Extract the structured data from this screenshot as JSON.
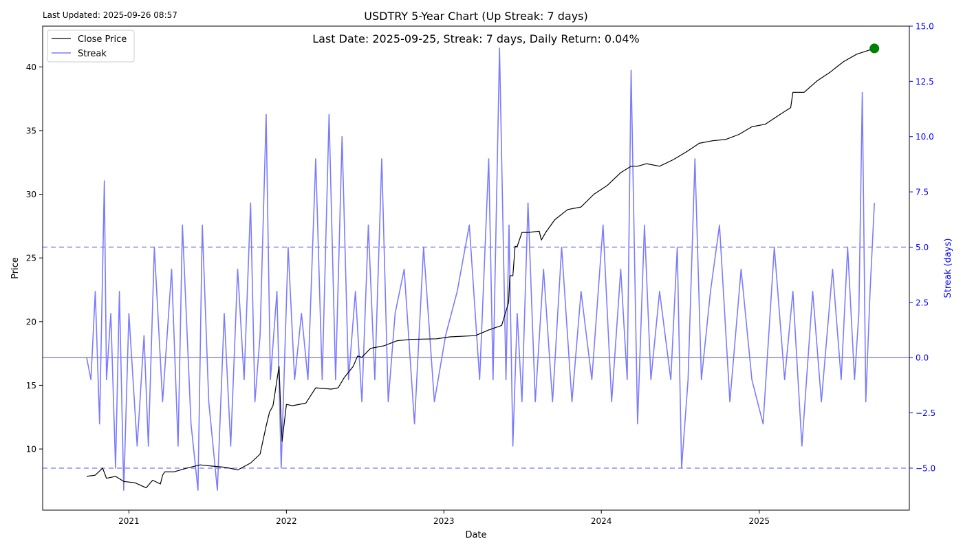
{
  "header": {
    "last_updated": "Last Updated: 2025-09-26 08:57"
  },
  "chart_data": {
    "type": "line",
    "title": "USDTRY 5-Year Chart (Up Streak: 7 days)",
    "annotation": "Last Date: 2025-09-25, Streak: 7 days, Daily Return: 0.04%",
    "xlabel": "Date",
    "ylabel": "Price",
    "ylabel_right": "Streak (days)",
    "xlim": [
      "2020-06-15",
      "2025-12-15"
    ],
    "ylim": [
      5.2,
      43.2
    ],
    "ylim_right": [
      -6.9,
      15.0
    ],
    "x_ticks": [
      "2021-01-01",
      "2022-01-01",
      "2023-01-01",
      "2024-01-01",
      "2025-01-01"
    ],
    "x_tick_labels": [
      "2021",
      "2022",
      "2023",
      "2024",
      "2025"
    ],
    "y_ticks": [
      10,
      15,
      20,
      25,
      30,
      35,
      40
    ],
    "y_tick_labels": [
      "10",
      "15",
      "20",
      "25",
      "30",
      "35",
      "40"
    ],
    "y_ticks_right": [
      -5.0,
      -2.5,
      0.0,
      2.5,
      5.0,
      7.5,
      10.0,
      12.5,
      15.0
    ],
    "y_tick_labels_right": [
      "−5.0",
      "−2.5",
      "0.0",
      "2.5",
      "5.0",
      "7.5",
      "10.0",
      "12.5",
      "15.0"
    ],
    "reference_lines_right": [
      5,
      0,
      -5
    ],
    "legend": {
      "placement": "top-left",
      "entries": [
        "Close Price",
        "Streak"
      ]
    },
    "colors": {
      "price": "#000000",
      "streak": "#7b7bff",
      "right_axis": "#0000ff",
      "last_marker": "#008000"
    },
    "last_point": {
      "x": "2025-09-25",
      "y": 41.45
    },
    "series": [
      {
        "name": "Close Price",
        "axis": "left",
        "x": [
          "2020-09-25",
          "2020-10-15",
          "2020-11-01",
          "2020-11-10",
          "2020-12-01",
          "2020-12-20",
          "2021-01-15",
          "2021-02-10",
          "2021-02-25",
          "2021-03-15",
          "2021-03-20",
          "2021-03-25",
          "2021-04-15",
          "2021-05-15",
          "2021-06-15",
          "2021-07-15",
          "2021-08-15",
          "2021-09-10",
          "2021-10-10",
          "2021-11-01",
          "2021-11-15",
          "2021-11-23",
          "2021-12-01",
          "2021-12-15",
          "2021-12-20",
          "2021-12-22",
          "2022-01-01",
          "2022-01-15",
          "2022-02-15",
          "2022-03-10",
          "2022-04-15",
          "2022-05-01",
          "2022-05-15",
          "2022-06-05",
          "2022-06-15",
          "2022-06-25",
          "2022-07-15",
          "2022-08-15",
          "2022-09-15",
          "2022-10-15",
          "2022-12-15",
          "2023-01-15",
          "2023-03-15",
          "2023-04-15",
          "2023-05-15",
          "2023-05-31",
          "2023-06-03",
          "2023-06-10",
          "2023-06-15",
          "2023-06-20",
          "2023-07-01",
          "2023-07-15",
          "2023-08-10",
          "2023-08-15",
          "2023-08-25",
          "2023-09-15",
          "2023-10-15",
          "2023-11-15",
          "2023-12-15",
          "2024-01-15",
          "2024-02-15",
          "2024-03-10",
          "2024-03-25",
          "2024-04-15",
          "2024-05-15",
          "2024-06-15",
          "2024-07-15",
          "2024-08-15",
          "2024-09-15",
          "2024-10-15",
          "2024-11-15",
          "2024-12-15",
          "2025-01-15",
          "2025-02-15",
          "2025-03-15",
          "2025-03-20",
          "2025-04-15",
          "2025-05-15",
          "2025-06-15",
          "2025-07-15",
          "2025-08-15",
          "2025-09-25"
        ],
        "y": [
          7.85,
          7.95,
          8.5,
          7.7,
          7.85,
          7.45,
          7.35,
          6.95,
          7.55,
          7.25,
          7.95,
          8.2,
          8.2,
          8.5,
          8.75,
          8.65,
          8.55,
          8.35,
          8.9,
          9.6,
          11.8,
          12.9,
          13.4,
          16.5,
          12.0,
          10.6,
          13.5,
          13.4,
          13.6,
          14.8,
          14.7,
          14.8,
          15.6,
          16.5,
          17.3,
          17.2,
          17.9,
          18.1,
          18.5,
          18.6,
          18.65,
          18.8,
          18.9,
          19.35,
          19.7,
          21.5,
          23.6,
          23.6,
          25.9,
          25.9,
          27.0,
          27.0,
          27.1,
          26.4,
          27.0,
          28.0,
          28.8,
          29.0,
          30.0,
          30.7,
          31.7,
          32.2,
          32.2,
          32.4,
          32.2,
          32.7,
          33.3,
          34.0,
          34.2,
          34.3,
          34.7,
          35.3,
          35.5,
          36.2,
          36.8,
          38.0,
          38.0,
          38.9,
          39.6,
          40.4,
          41.0,
          41.45
        ]
      },
      {
        "name": "Streak",
        "axis": "right",
        "x": [
          "2020-09-25",
          "2020-10-05",
          "2020-10-15",
          "2020-10-25",
          "2020-11-05",
          "2020-11-10",
          "2020-11-20",
          "2020-12-01",
          "2020-12-10",
          "2020-12-20",
          "2021-01-01",
          "2021-01-20",
          "2021-02-05",
          "2021-02-15",
          "2021-03-01",
          "2021-03-20",
          "2021-04-10",
          "2021-04-25",
          "2021-05-05",
          "2021-05-25",
          "2021-06-10",
          "2021-06-20",
          "2021-07-05",
          "2021-07-25",
          "2021-08-10",
          "2021-08-25",
          "2021-09-10",
          "2021-09-25",
          "2021-10-10",
          "2021-10-20",
          "2021-11-01",
          "2021-11-15",
          "2021-11-25",
          "2021-12-10",
          "2021-12-20",
          "2022-01-05",
          "2022-01-20",
          "2022-02-05",
          "2022-02-20",
          "2022-03-10",
          "2022-03-25",
          "2022-04-10",
          "2022-04-25",
          "2022-05-10",
          "2022-05-25",
          "2022-06-10",
          "2022-06-25",
          "2022-07-10",
          "2022-07-25",
          "2022-08-10",
          "2022-08-25",
          "2022-09-10",
          "2022-10-01",
          "2022-10-25",
          "2022-11-15",
          "2022-12-10",
          "2023-01-05",
          "2023-02-01",
          "2023-03-01",
          "2023-03-25",
          "2023-04-15",
          "2023-04-25",
          "2023-05-10",
          "2023-05-25",
          "2023-06-01",
          "2023-06-10",
          "2023-06-20",
          "2023-07-01",
          "2023-07-15",
          "2023-08-01",
          "2023-08-20",
          "2023-09-10",
          "2023-10-01",
          "2023-10-25",
          "2023-11-15",
          "2023-12-10",
          "2024-01-05",
          "2024-01-25",
          "2024-02-15",
          "2024-03-01",
          "2024-03-10",
          "2024-03-25",
          "2024-04-10",
          "2024-04-25",
          "2024-05-15",
          "2024-06-10",
          "2024-06-25",
          "2024-07-05",
          "2024-07-20",
          "2024-08-05",
          "2024-08-20",
          "2024-09-10",
          "2024-10-01",
          "2024-10-25",
          "2024-11-20",
          "2024-12-15",
          "2025-01-10",
          "2025-02-05",
          "2025-03-01",
          "2025-03-20",
          "2025-04-10",
          "2025-05-05",
          "2025-05-25",
          "2025-06-20",
          "2025-07-10",
          "2025-07-25",
          "2025-08-10",
          "2025-08-20",
          "2025-08-28",
          "2025-09-05",
          "2025-09-15",
          "2025-09-25"
        ],
        "y": [
          0,
          -1,
          3,
          -3,
          8,
          -1,
          2,
          -5,
          3,
          -6,
          2,
          -4,
          1,
          -4,
          5,
          -2,
          4,
          -4,
          6,
          -3,
          -6,
          6,
          -2,
          -6,
          2,
          -4,
          4,
          -1,
          7,
          -2,
          1,
          11,
          -1,
          3,
          -5,
          5,
          -1,
          2,
          -1,
          9,
          -1,
          11,
          -1,
          10,
          -1,
          3,
          -2,
          6,
          -1,
          9,
          -2,
          2,
          4,
          -3,
          5,
          -2,
          1,
          3,
          6,
          -1,
          9,
          -1,
          14,
          -1,
          6,
          -4,
          2,
          -2,
          7,
          -2,
          4,
          -2,
          5,
          -2,
          3,
          -1,
          6,
          -2,
          4,
          -1,
          13,
          -3,
          6,
          -1,
          3,
          -1,
          5,
          -5,
          -1,
          9,
          -1,
          3,
          6,
          -2,
          4,
          -1,
          -3,
          5,
          -1,
          3,
          -4,
          3,
          -2,
          4,
          -1,
          5,
          -1,
          2,
          12,
          -2,
          3,
          7
        ]
      }
    ]
  }
}
